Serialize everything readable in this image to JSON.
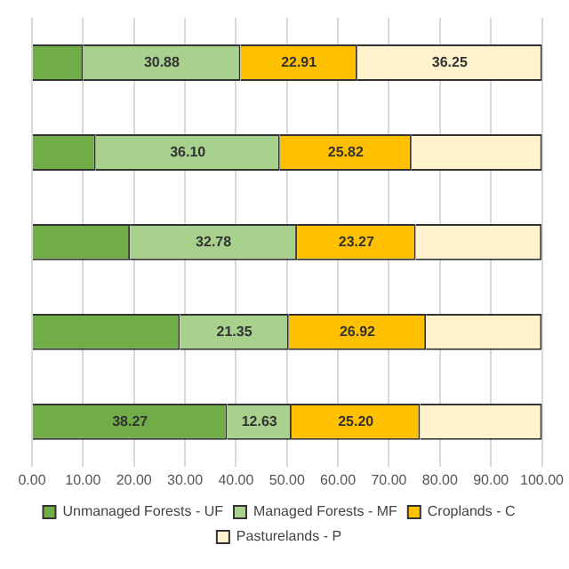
{
  "chart_data": {
    "type": "bar",
    "orientation": "horizontal",
    "stacked": true,
    "categories": [
      null,
      null,
      null,
      null,
      null
    ],
    "series": [
      {
        "name": "Unmanaged Forests - UF",
        "color": "#70ad47",
        "values": [
          10.0,
          12.5,
          19.2,
          29.0,
          38.27
        ],
        "value_labels": [
          null,
          null,
          null,
          null,
          "38.27"
        ]
      },
      {
        "name": "Managed Forests - MF",
        "color": "#a9d18e",
        "values": [
          30.88,
          36.1,
          32.78,
          21.35,
          12.63
        ],
        "value_labels": [
          "30.88",
          "36.10",
          "32.78",
          "21.35",
          "12.63"
        ]
      },
      {
        "name": "Croplands - C",
        "color": "#ffc000",
        "values": [
          22.91,
          25.82,
          23.27,
          26.92,
          25.2
        ],
        "value_labels": [
          "22.91",
          "25.82",
          "23.27",
          "26.92",
          "25.20"
        ]
      },
      {
        "name": "Pasturelands - P",
        "color": "#fff2cc",
        "values": [
          36.25,
          25.6,
          24.7,
          22.7,
          23.9
        ],
        "value_labels": [
          "36.25",
          null,
          null,
          null,
          null
        ]
      }
    ],
    "xlim": [
      0,
      100
    ],
    "xticks": [
      {
        "value": 0,
        "label": "0.00"
      },
      {
        "value": 10,
        "label": "10.00"
      },
      {
        "value": 20,
        "label": "20.00"
      },
      {
        "value": 30,
        "label": "30.00"
      },
      {
        "value": 40,
        "label": "40.00"
      },
      {
        "value": 50,
        "label": "50.00"
      },
      {
        "value": 60,
        "label": "60.00"
      },
      {
        "value": 70,
        "label": "70.00"
      },
      {
        "value": 80,
        "label": "80.00"
      },
      {
        "value": 90,
        "label": "90.00"
      },
      {
        "value": 100,
        "label": "100.00"
      }
    ],
    "grid": "x",
    "legend": "bottom"
  }
}
